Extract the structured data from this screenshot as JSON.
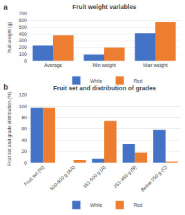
{
  "chart_data": [
    {
      "type": "bar",
      "title": "Fruit weight variables",
      "ylabel": "fruit weight (g)",
      "categories": [
        "Average",
        "Min weight",
        "Max weight"
      ],
      "series": [
        {
          "name": "White",
          "color": "#4472C4",
          "values": [
            230,
            95,
            410
          ]
        },
        {
          "name": "Red",
          "color": "#ED7D31",
          "values": [
            380,
            200,
            575
          ]
        }
      ],
      "ylim": [
        0,
        700
      ],
      "yticks": [
        0,
        100,
        200,
        300,
        400,
        500,
        600,
        700
      ],
      "grid": true,
      "legend": "bottom",
      "annotations": [
        "a"
      ]
    },
    {
      "type": "bar",
      "title": "Fruit set and distribution of grades",
      "ylabel": "Fruit set and grade distribution (%)",
      "categories": [
        "Fruit set (%)",
        "500-800 g (AA)",
        "351-500 g (A)",
        "251-350 g (B)",
        "Below 250 g (C)"
      ],
      "series": [
        {
          "name": "White",
          "color": "#4472C4",
          "values": [
            97,
            0,
            7,
            33,
            58
          ]
        },
        {
          "name": "Red",
          "color": "#ED7D31",
          "values": [
            97,
            5,
            74,
            18,
            2
          ]
        }
      ],
      "ylim": [
        0,
        120
      ],
      "yticks": [
        0,
        20,
        40,
        60,
        80,
        100,
        120
      ],
      "grid": true,
      "legend": "bottom",
      "annotations": [
        "b"
      ]
    }
  ]
}
